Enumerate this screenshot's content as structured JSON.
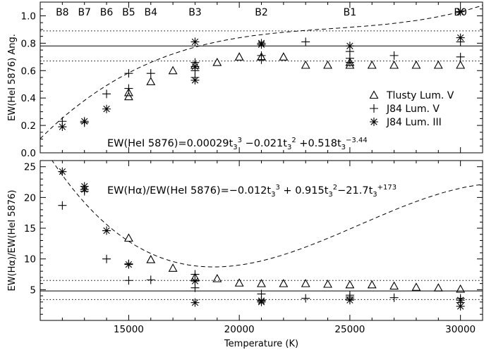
{
  "chart_data": [
    {
      "type": "scatter",
      "panel": "top",
      "ylabel": "EW(HeI 5876)  Ang.",
      "ylim": [
        0,
        1.1
      ],
      "yticks": [
        "0.0",
        "0.2",
        "0.4",
        "0.6",
        "0.8",
        "1.0"
      ],
      "ytick_values": [
        0,
        0.2,
        0.4,
        0.6,
        0.8,
        1.0
      ],
      "spectral_types": [
        {
          "label": "B8",
          "x": 12000
        },
        {
          "label": "B7",
          "x": 13000
        },
        {
          "label": "B6",
          "x": 14000
        },
        {
          "label": "B5",
          "x": 15000
        },
        {
          "label": "B4",
          "x": 16000
        },
        {
          "label": "B3",
          "x": 18000
        },
        {
          "label": "B2",
          "x": 21000
        },
        {
          "label": "B1",
          "x": 25000
        },
        {
          "label": "B0",
          "x": 30000
        }
      ],
      "formula": {
        "prefix": "EW(HeI 5876)=0.00029t",
        "parts": [
          "3",
          "3",
          " −0.021t",
          "3",
          "2",
          " +0.518t",
          "3",
          "−3.44"
        ]
      },
      "reference_lines": {
        "solid": 0.78,
        "dotted": [
          0.89,
          0.67
        ]
      },
      "legend": [
        {
          "marker": "triangle",
          "label": "Tlusty Lum. V"
        },
        {
          "marker": "plus",
          "label": "J84 Lum. V"
        },
        {
          "marker": "asterisk",
          "label": "J84 Lum. III"
        }
      ],
      "fit_coefficients": [
        0.00029,
        -0.021,
        0.518,
        -3.44
      ],
      "fit_range": [
        11000,
        31000
      ],
      "series": [
        {
          "name": "Tlusty Lum. V",
          "marker": "triangle",
          "x": [
            15000,
            15000,
            16000,
            17000,
            18000,
            19000,
            20000,
            21000,
            22000,
            23000,
            24000,
            25000,
            25000,
            26000,
            27000,
            28000,
            29000,
            30000
          ],
          "y": [
            0.41,
            0.44,
            0.52,
            0.6,
            0.64,
            0.66,
            0.7,
            0.7,
            0.7,
            0.64,
            0.64,
            0.64,
            0.66,
            0.64,
            0.64,
            0.64,
            0.64,
            0.64
          ]
        },
        {
          "name": "J84 Lum. V",
          "marker": "plus",
          "x": [
            12000,
            13000,
            14000,
            15000,
            15000,
            16000,
            18000,
            18000,
            18000,
            21000,
            21000,
            23000,
            25000,
            25000,
            25000,
            27000,
            30000,
            30000
          ],
          "y": [
            0.23,
            0.22,
            0.43,
            0.47,
            0.58,
            0.58,
            0.55,
            0.6,
            0.66,
            0.68,
            0.71,
            0.81,
            0.66,
            0.69,
            0.74,
            0.71,
            0.7,
            0.81
          ]
        },
        {
          "name": "J84 Lum. III",
          "marker": "asterisk",
          "x": [
            12000,
            13000,
            14000,
            18000,
            18000,
            18000,
            21000,
            21000,
            25000,
            30000,
            30000
          ],
          "y": [
            0.19,
            0.23,
            0.32,
            0.53,
            0.63,
            0.81,
            0.79,
            0.8,
            0.78,
            0.84,
            1.03
          ]
        }
      ]
    },
    {
      "type": "scatter",
      "panel": "bottom",
      "xlabel": "Temperature (K)",
      "ylabel": "EW(Hα)/EW(HeI 5876)",
      "xlim": [
        11000,
        31000
      ],
      "ylim": [
        0,
        26
      ],
      "xticks": [
        "15000",
        "20000",
        "25000",
        "30000"
      ],
      "xtick_values": [
        15000,
        20000,
        25000,
        30000
      ],
      "yticks": [
        "5",
        "10",
        "15",
        "20",
        "25"
      ],
      "ytick_values": [
        5,
        10,
        15,
        20,
        25
      ],
      "formula": {
        "prefix": "EW(Hα)/EW(HeI 5876)=−0.012t",
        "parts": [
          "3",
          "3",
          " + 0.915t",
          "3",
          "2",
          "−21.7t",
          "3",
          "+173"
        ]
      },
      "reference_lines": {
        "solid": 4.8,
        "dotted": [
          6.5,
          3.4
        ]
      },
      "fit_coefficients": [
        -0.012,
        0.915,
        -21.7,
        173
      ],
      "fit_range": [
        11000,
        31000
      ],
      "series": [
        {
          "name": "Tlusty Lum. V",
          "marker": "triangle",
          "x": [
            15000,
            16000,
            17000,
            18000,
            19000,
            20000,
            21000,
            22000,
            23000,
            24000,
            25000,
            26000,
            27000,
            28000,
            29000,
            30000
          ],
          "y": [
            13.4,
            9.9,
            8.5,
            7.0,
            6.8,
            6.1,
            6.0,
            6.0,
            6.0,
            5.9,
            5.8,
            5.8,
            5.6,
            5.4,
            5.3,
            5.1
          ]
        },
        {
          "name": "J84 Lum. V",
          "marker": "plus",
          "x": [
            12000,
            13000,
            14000,
            15000,
            15000,
            16000,
            18000,
            18000,
            18000,
            21000,
            21000,
            23000,
            25000,
            25000,
            25000,
            27000,
            30000,
            30000
          ],
          "y": [
            18.7,
            21.0,
            10.0,
            6.5,
            9.2,
            6.6,
            5.3,
            6.5,
            7.5,
            4.3,
            3.3,
            3.6,
            3.5,
            3.8,
            4.1,
            3.7,
            2.9,
            3.6
          ]
        },
        {
          "name": "J84 Lum. III",
          "marker": "asterisk",
          "x": [
            12000,
            13000,
            13000,
            14000,
            15000,
            18000,
            18000,
            21000,
            21000,
            25000,
            30000,
            30000
          ],
          "y": [
            24.2,
            21.8,
            21.3,
            14.6,
            9.1,
            2.9,
            6.4,
            3.0,
            3.2,
            3.3,
            2.3,
            3.3
          ]
        }
      ]
    }
  ]
}
